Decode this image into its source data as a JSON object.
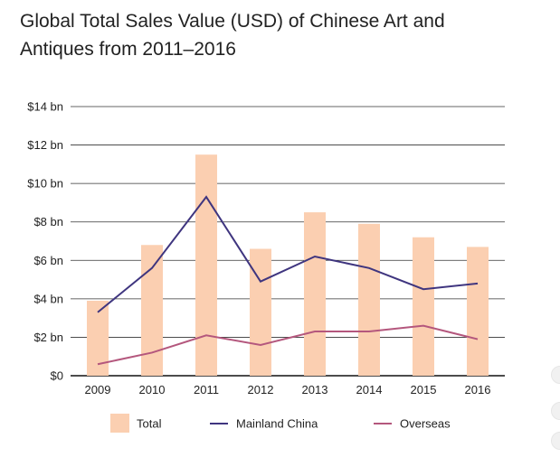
{
  "chart_data": {
    "type": "bar+line",
    "title_lines": [
      "Global Total Sales Value (USD) of Chinese Art and",
      "Antiques from 2011–2016"
    ],
    "categories": [
      "2009",
      "2010",
      "2011",
      "2012",
      "2013",
      "2014",
      "2015",
      "2016"
    ],
    "series": [
      {
        "name": "Total",
        "kind": "bar",
        "color": "#fbcfb1",
        "values": [
          3.9,
          6.8,
          11.5,
          6.6,
          8.5,
          7.9,
          7.2,
          6.7
        ]
      },
      {
        "name": "Mainland China",
        "kind": "line",
        "color": "#3f357f",
        "values": [
          3.3,
          5.6,
          9.3,
          4.9,
          6.2,
          5.6,
          4.5,
          4.8
        ]
      },
      {
        "name": "Overseas",
        "kind": "line",
        "color": "#b4577d",
        "values": [
          0.6,
          1.2,
          2.1,
          1.6,
          2.3,
          2.3,
          2.6,
          1.9
        ]
      }
    ],
    "ylim": [
      0,
      14
    ],
    "yticks": [
      {
        "value": 0,
        "label": "$0"
      },
      {
        "value": 2,
        "label": "$2 bn"
      },
      {
        "value": 4,
        "label": "$4 bn"
      },
      {
        "value": 6,
        "label": "$6 bn"
      },
      {
        "value": 8,
        "label": "$8 bn"
      },
      {
        "value": 10,
        "label": "$10 bn"
      },
      {
        "value": 12,
        "label": "$12 bn"
      },
      {
        "value": 14,
        "label": "$14 bn"
      }
    ],
    "grid": true,
    "legend_position": "bottom"
  }
}
